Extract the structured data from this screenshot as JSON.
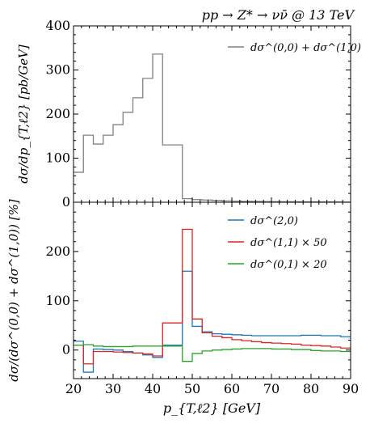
{
  "chart_data": [
    {
      "type": "line",
      "title": "pp → Z* → νν̄ @ 13 TeV",
      "ylabel": "dσ/dp_{T,ℓ2} [pb/GeV]",
      "ylim": [
        0,
        400
      ],
      "yticks": [
        "0",
        "100",
        "200",
        "300",
        "400"
      ],
      "xlim": [
        20,
        90
      ],
      "bin_edges": [
        20,
        22.5,
        25,
        27.5,
        30,
        32.5,
        35,
        37.5,
        40,
        42.5,
        45,
        47.5,
        50,
        52.5,
        55,
        57.5,
        60,
        62.5,
        65,
        67.5,
        70,
        72.5,
        75,
        77.5,
        80,
        82.5,
        85,
        87.5,
        90
      ],
      "legend_position": "top-right",
      "series": [
        {
          "name": "dσ^(0,0) + dσ^(1,0)",
          "color": "#808080",
          "values": [
            68,
            152,
            132,
            152,
            176,
            204,
            237,
            281,
            336,
            130,
            130,
            8,
            6,
            5,
            4,
            3,
            2.5,
            2,
            1.8,
            1.5,
            1.3,
            1.2,
            1,
            0.9,
            0.8,
            0.7,
            0.6,
            0.5
          ]
        }
      ]
    },
    {
      "type": "line",
      "ylabel": "dσ/(dσ^(0,0) + dσ^(1,0)) [%]",
      "xlabel": "p_{T,ℓ2} [GeV]",
      "xlim": [
        20,
        90
      ],
      "ylim": [
        -58,
        300
      ],
      "yticks": [
        "0",
        "100",
        "200"
      ],
      "xticks": [
        "20",
        "30",
        "40",
        "50",
        "60",
        "70",
        "80",
        "90"
      ],
      "bin_edges": [
        20,
        22.5,
        25,
        27.5,
        30,
        32.5,
        35,
        37.5,
        40,
        42.5,
        45,
        47.5,
        50,
        52.5,
        55,
        57.5,
        60,
        62.5,
        65,
        67.5,
        70,
        72.5,
        75,
        77.5,
        80,
        82.5,
        85,
        87.5,
        90
      ],
      "legend_position": "top-right",
      "series": [
        {
          "name": "dσ^(2,0)",
          "color": "#1f77b4",
          "values": [
            18,
            -45,
            2,
            1,
            0,
            -3,
            -6,
            -10,
            -15,
            10,
            10,
            160,
            48,
            37,
            33,
            32,
            31,
            30,
            29,
            29,
            29,
            29,
            29,
            30,
            30,
            29,
            29,
            27
          ]
        },
        {
          "name": "dσ^(1,1) × 50",
          "color": "#d62728",
          "values": [
            10,
            -28,
            -3,
            -3,
            -4,
            -5,
            -6,
            -8,
            -12,
            55,
            55,
            245,
            63,
            35,
            28,
            25,
            21,
            19,
            17,
            15,
            14,
            13,
            12,
            10,
            9,
            8,
            6,
            4
          ]
        },
        {
          "name": "dσ^(0,1) × 20",
          "color": "#2ca02c",
          "values": [
            10,
            11,
            8,
            7,
            7,
            7,
            8,
            8,
            8,
            8,
            8,
            -23,
            -7,
            -2,
            0,
            1,
            2,
            3,
            3,
            3,
            2,
            2,
            1,
            1,
            -1,
            -2,
            -2,
            -3
          ]
        }
      ]
    }
  ]
}
